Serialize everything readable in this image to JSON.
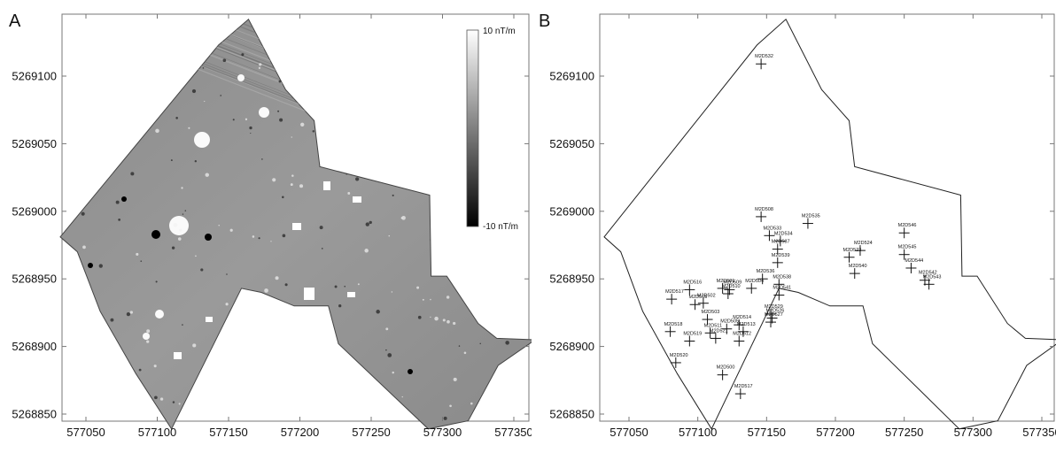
{
  "panels": {
    "a": {
      "label": "A",
      "colorbar": {
        "max_label": "10 nT/m",
        "min_label": "-10 nT/m"
      },
      "x_ticks": [
        "577050",
        "577100",
        "577150",
        "577200",
        "577250",
        "577300",
        "577350"
      ],
      "y_ticks": [
        "5269100",
        "5269050",
        "5269000",
        "5268950",
        "5268900",
        "5268850"
      ]
    },
    "b": {
      "label": "B",
      "x_ticks": [
        "577050",
        "577100",
        "577150",
        "577200",
        "577250",
        "577300",
        "577350"
      ],
      "y_ticks": [
        "5269100",
        "5269050",
        "5269000",
        "5268950",
        "5268900",
        "5268850"
      ]
    }
  },
  "chart_data": [
    {
      "type": "map",
      "panel": "A",
      "description_layer": "magnetic gradiometer survey (grayscale)",
      "colorbar": {
        "min": -10,
        "max": 10,
        "unit": "nT/m"
      },
      "xlim": [
        577032,
        577366
      ],
      "ylim": [
        5268839,
        5269142
      ],
      "survey_boundary": [
        [
          577032,
          5268981
        ],
        [
          577143,
          5269123
        ],
        [
          577164,
          5269142
        ],
        [
          577190,
          5269090
        ],
        [
          577210,
          5269067
        ],
        [
          577214,
          5269033
        ],
        [
          577291,
          5269012
        ],
        [
          577292,
          5268952
        ],
        [
          577303,
          5268952
        ],
        [
          577325,
          5268917
        ],
        [
          577338,
          5268906
        ],
        [
          577365,
          5268905
        ],
        [
          577339,
          5268886
        ],
        [
          577318,
          5268845
        ],
        [
          577290,
          5268839
        ],
        [
          577258,
          5268871
        ],
        [
          577227,
          5268902
        ],
        [
          577220,
          5268930
        ],
        [
          577196,
          5268930
        ],
        [
          577173,
          5268940
        ],
        [
          577159,
          5268943
        ],
        [
          577110,
          5268839
        ],
        [
          577085,
          5268880
        ],
        [
          577060,
          5268926
        ],
        [
          577044,
          5268970
        ]
      ]
    },
    {
      "type": "map",
      "panel": "B",
      "xlim": [
        577032,
        577366
      ],
      "ylim": [
        5268839,
        5269142
      ],
      "survey_boundary": [
        [
          577032,
          5268981
        ],
        [
          577143,
          5269123
        ],
        [
          577164,
          5269142
        ],
        [
          577190,
          5269090
        ],
        [
          577210,
          5269067
        ],
        [
          577214,
          5269033
        ],
        [
          577291,
          5269012
        ],
        [
          577292,
          5268952
        ],
        [
          577303,
          5268952
        ],
        [
          577325,
          5268917
        ],
        [
          577338,
          5268906
        ],
        [
          577365,
          5268905
        ],
        [
          577339,
          5268886
        ],
        [
          577318,
          5268845
        ],
        [
          577290,
          5268839
        ],
        [
          577258,
          5268871
        ],
        [
          577227,
          5268902
        ],
        [
          577220,
          5268930
        ],
        [
          577196,
          5268930
        ],
        [
          577173,
          5268940
        ],
        [
          577159,
          5268943
        ],
        [
          577110,
          5268839
        ],
        [
          577085,
          5268880
        ],
        [
          577060,
          5268926
        ],
        [
          577044,
          5268970
        ]
      ],
      "points": [
        {
          "label": "M2D532",
          "x": 577146,
          "y": 5269109
        },
        {
          "label": "M2D508",
          "x": 577146,
          "y": 5268996
        },
        {
          "label": "M2D535",
          "x": 577180,
          "y": 5268991
        },
        {
          "label": "M2D533",
          "x": 577152,
          "y": 5268982
        },
        {
          "label": "M2D534",
          "x": 577160,
          "y": 5268978
        },
        {
          "label": "M2D537",
          "x": 577158,
          "y": 5268972
        },
        {
          "label": "M2D539",
          "x": 577158,
          "y": 5268962
        },
        {
          "label": "M2D524",
          "x": 577218,
          "y": 5268971
        },
        {
          "label": "M2D523",
          "x": 577210,
          "y": 5268966
        },
        {
          "label": "M2D540",
          "x": 577214,
          "y": 5268954
        },
        {
          "label": "M2D546",
          "x": 577250,
          "y": 5268984
        },
        {
          "label": "M2D545",
          "x": 577250,
          "y": 5268968
        },
        {
          "label": "M2D544",
          "x": 577255,
          "y": 5268958
        },
        {
          "label": "M2D542",
          "x": 577265,
          "y": 5268949
        },
        {
          "label": "M2D543",
          "x": 577268,
          "y": 5268946
        },
        {
          "label": "M2D536",
          "x": 577147,
          "y": 5268950
        },
        {
          "label": "M2D538",
          "x": 577159,
          "y": 5268946
        },
        {
          "label": "M2D541",
          "x": 577159,
          "y": 5268938
        },
        {
          "label": "M2D516",
          "x": 577094,
          "y": 5268942
        },
        {
          "label": "M2D517",
          "x": 577081,
          "y": 5268935
        },
        {
          "label": "M2D515",
          "x": 577098,
          "y": 5268931
        },
        {
          "label": "M2D502",
          "x": 577104,
          "y": 5268932
        },
        {
          "label": "M2D501",
          "x": 577118,
          "y": 5268943
        },
        {
          "label": "M2D509",
          "x": 577123,
          "y": 5268942
        },
        {
          "label": "M2D510",
          "x": 577122,
          "y": 5268939
        },
        {
          "label": "M2D504",
          "x": 577139,
          "y": 5268943
        },
        {
          "label": "M2D503",
          "x": 577107,
          "y": 5268920
        },
        {
          "label": "M2D514",
          "x": 577130,
          "y": 5268916
        },
        {
          "label": "M2D513",
          "x": 577133,
          "y": 5268911
        },
        {
          "label": "M2D505",
          "x": 577121,
          "y": 5268913
        },
        {
          "label": "M2D512",
          "x": 577130,
          "y": 5268904
        },
        {
          "label": "M2D529",
          "x": 577153,
          "y": 5268924
        },
        {
          "label": "M2D526",
          "x": 577154,
          "y": 5268921
        },
        {
          "label": "M2D527",
          "x": 577153,
          "y": 5268918
        },
        {
          "label": "M2D511",
          "x": 577109,
          "y": 5268910
        },
        {
          "label": "M2D521",
          "x": 577113,
          "y": 5268906
        },
        {
          "label": "M2D518",
          "x": 577080,
          "y": 5268911
        },
        {
          "label": "M2D519",
          "x": 577094,
          "y": 5268904
        },
        {
          "label": "M2D520",
          "x": 577084,
          "y": 5268888
        },
        {
          "label": "M2D500",
          "x": 577118,
          "y": 5268879
        },
        {
          "label": "M2D517",
          "x": 577131,
          "y": 5268865
        }
      ]
    }
  ]
}
